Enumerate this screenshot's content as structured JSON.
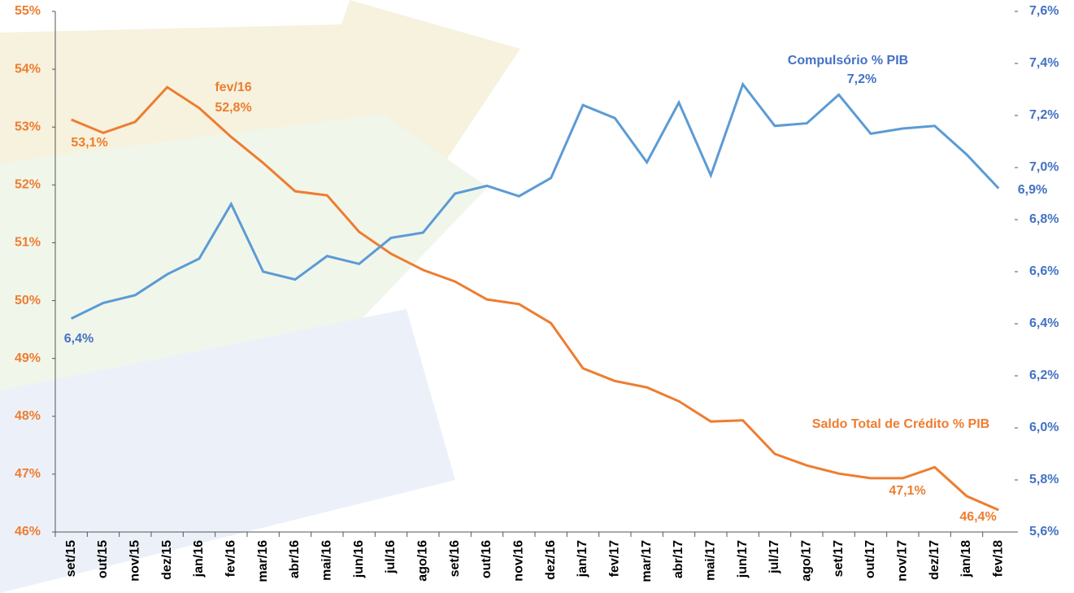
{
  "chart_data": {
    "type": "line",
    "categories": [
      "set/15",
      "out/15",
      "nov/15",
      "dez/15",
      "jan/16",
      "fev/16",
      "mar/16",
      "abr/16",
      "mai/16",
      "jun/16",
      "jul/16",
      "ago/16",
      "set/16",
      "out/16",
      "nov/16",
      "dez/16",
      "jan/17",
      "fev/17",
      "mar/17",
      "abr/17",
      "mai/17",
      "jun/17",
      "jul/17",
      "ago/17",
      "set/17",
      "out/17",
      "nov/17",
      "dez/17",
      "jan/18",
      "fev/18"
    ],
    "series": [
      {
        "name": "Saldo Total de Crédito % PIB",
        "color": "#ED7D31",
        "values": [
          53.13,
          52.9,
          53.09,
          53.69,
          53.33,
          52.83,
          52.38,
          51.89,
          51.82,
          51.19,
          50.81,
          50.53,
          50.33,
          50.02,
          49.94,
          49.61,
          48.83,
          48.61,
          48.5,
          48.26,
          47.91,
          47.93,
          47.35,
          47.15,
          47.01,
          46.93,
          46.93,
          47.12,
          46.62,
          46.38
        ]
      },
      {
        "name": "Compulsório % PIB",
        "color": "#5B9BD5",
        "axis": "y2",
        "values": [
          6.42,
          6.48,
          6.51,
          6.59,
          6.65,
          6.86,
          6.6,
          6.57,
          6.66,
          6.63,
          6.73,
          6.75,
          6.9,
          6.93,
          6.89,
          6.96,
          7.24,
          7.19,
          7.02,
          7.25,
          6.97,
          7.32,
          7.16,
          7.17,
          7.28,
          7.13,
          7.15,
          7.16,
          7.05,
          6.92
        ]
      }
    ],
    "ylim": [
      46,
      55
    ],
    "yticks": [
      {
        "value": 46,
        "label": "46%"
      },
      {
        "value": 47,
        "label": "47%"
      },
      {
        "value": 48,
        "label": "48%"
      },
      {
        "value": 49,
        "label": "49%"
      },
      {
        "value": 50,
        "label": "50%"
      },
      {
        "value": 51,
        "label": "51%"
      },
      {
        "value": 52,
        "label": "52%"
      },
      {
        "value": 53,
        "label": "53%"
      },
      {
        "value": 54,
        "label": "54%"
      },
      {
        "value": 55,
        "label": "55%"
      }
    ],
    "y2lim": [
      5.6,
      7.6
    ],
    "y2ticks": [
      {
        "value": 5.6,
        "label": "5,6%"
      },
      {
        "value": 5.8,
        "label": "5,8%"
      },
      {
        "value": 6.0,
        "label": "6,0%"
      },
      {
        "value": 6.2,
        "label": "6,2%"
      },
      {
        "value": 6.4,
        "label": "6,4%"
      },
      {
        "value": 6.6,
        "label": "6,6%"
      },
      {
        "value": 6.8,
        "label": "6,8%"
      },
      {
        "value": 7.0,
        "label": "7,0%"
      },
      {
        "value": 7.2,
        "label": "7,2%"
      },
      {
        "value": 7.4,
        "label": "7,4%"
      },
      {
        "value": 7.6,
        "label": "7,6%"
      }
    ],
    "annotations": [
      "fev/16",
      "52,8%",
      "53,1%",
      "47,1%",
      "46,4%",
      "6,4%",
      "7,2%",
      "6,9%"
    ]
  }
}
